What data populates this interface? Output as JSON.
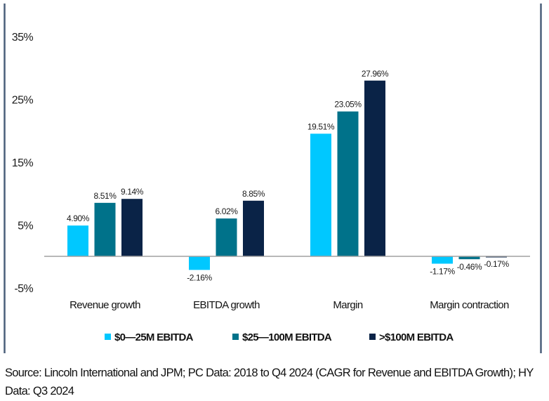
{
  "chart_data": {
    "type": "bar",
    "title": "",
    "xlabel": "",
    "ylabel": "",
    "categories": [
      "Revenue growth",
      "EBITDA growth",
      "Margin",
      "Margin contraction"
    ],
    "series": [
      {
        "name": "$0—25M EBITDA",
        "color": "#00C8FF",
        "values": [
          4.9,
          -2.16,
          19.51,
          -1.17
        ],
        "labels": [
          "4.90%",
          "-2.16%",
          "19.51%",
          "-1.17%"
        ]
      },
      {
        "name": "$25—100M EBITDA",
        "color": "#00728A",
        "values": [
          8.51,
          6.02,
          23.05,
          -0.46
        ],
        "labels": [
          "8.51%",
          "6.02%",
          "23.05%",
          "-0.46%"
        ]
      },
      {
        "name": ">$100M EBITDA",
        "color": "#0A2347",
        "values": [
          9.14,
          8.85,
          27.96,
          -0.17
        ],
        "labels": [
          "9.14%",
          "8.85%",
          "27.96%",
          "-0.17%"
        ]
      }
    ],
    "y_ticks": [
      35,
      25,
      15,
      5,
      -5
    ],
    "y_tick_labels": [
      "35%",
      "25%",
      "15%",
      "5%",
      "-5%"
    ],
    "ylim": [
      -8,
      37
    ],
    "grid": false,
    "legend_position": "bottom",
    "units": "%"
  },
  "source_note": "Source: Lincoln International and JPM; PC Data: 2018 to Q4 2024 (CAGR for Revenue and EBITDA Growth); HY Data: Q3 2024",
  "colors": {
    "frame": "#4A5F7A",
    "baseline": "#A0A0A0"
  }
}
